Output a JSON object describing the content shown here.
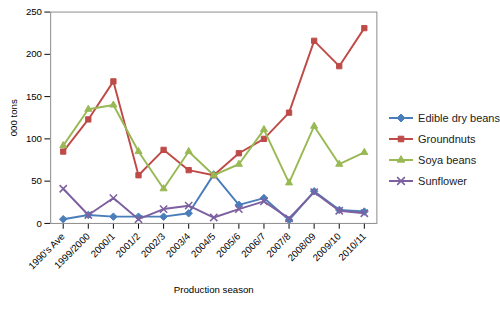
{
  "chart_data": {
    "type": "line",
    "x_label": "Production season",
    "y_label": "000 tons",
    "categories": [
      "1990's Ave",
      "1999/2000",
      "2000/1",
      "2001/2",
      "2002/3",
      "2003/4",
      "2004/5",
      "2005/6",
      "2006/7",
      "2007/8",
      "2008/09",
      "2009/10",
      "2010/11"
    ],
    "series": [
      {
        "name": "Edible dry beans",
        "color": "#4a7ebb",
        "marker": "diamond",
        "values": [
          5,
          10,
          8,
          8,
          8,
          12,
          58,
          22,
          30,
          4,
          38,
          16,
          14
        ]
      },
      {
        "name": "Groundnuts",
        "color": "#be4b48",
        "marker": "square",
        "values": [
          85,
          123,
          168,
          57,
          87,
          63,
          57,
          83,
          100,
          131,
          216,
          186,
          231
        ]
      },
      {
        "name": "Soya beans",
        "color": "#98b954",
        "marker": "triangle",
        "values": [
          92,
          135,
          140,
          85,
          41,
          85,
          57,
          70,
          111,
          48,
          115,
          70,
          84
        ]
      },
      {
        "name": "Sunflower",
        "color": "#7d60a0",
        "marker": "x",
        "values": [
          41,
          10,
          30,
          5,
          17,
          21,
          7,
          17,
          26,
          6,
          37,
          15,
          12
        ]
      }
    ],
    "ylim": [
      0,
      250
    ],
    "yticks": [
      0,
      50,
      100,
      150,
      200,
      250
    ],
    "grid": false,
    "legend": "right"
  }
}
